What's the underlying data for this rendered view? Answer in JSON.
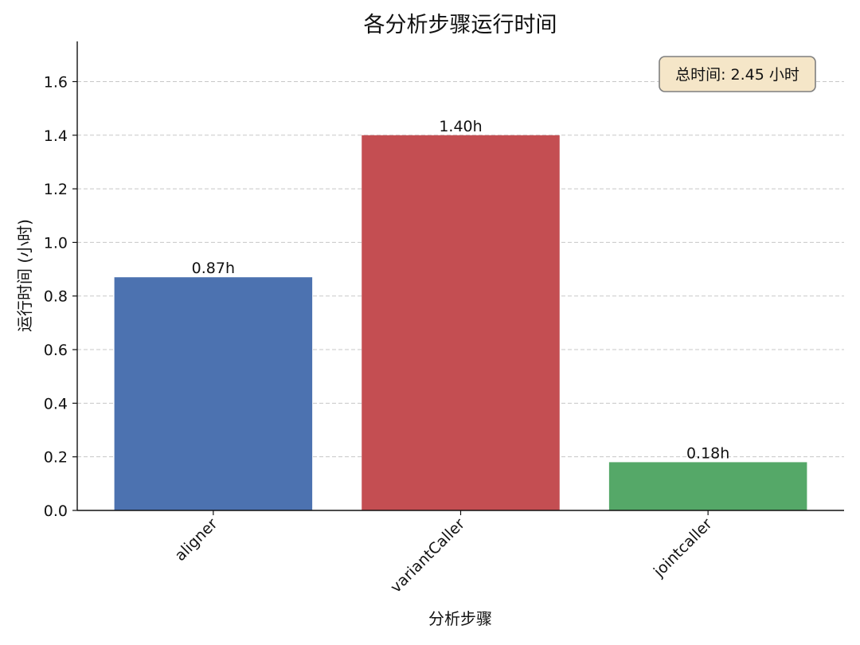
{
  "chart_data": {
    "type": "bar",
    "title": "各分析步骤运行时间",
    "xlabel": "分析步骤",
    "ylabel": "运行时间 (小时)",
    "categories": [
      "aligner",
      "variantCaller",
      "jointcaller"
    ],
    "values": [
      0.87,
      1.4,
      0.18
    ],
    "bar_labels": [
      "0.87h",
      "1.40h",
      "0.18h"
    ],
    "colors": [
      "#4c72b0",
      "#c44e52",
      "#55a868"
    ],
    "ylim": [
      0,
      1.75
    ],
    "yticks": [
      0.0,
      0.2,
      0.4,
      0.6,
      0.8,
      1.0,
      1.2,
      1.4,
      1.6
    ],
    "ytick_labels": [
      "0.0",
      "0.2",
      "0.4",
      "0.6",
      "0.8",
      "1.0",
      "1.2",
      "1.4",
      "1.6"
    ],
    "grid": "y-dashed",
    "annotation": {
      "text": "总时间: 2.45 小时",
      "placement": "top-right",
      "background": "#f5e6c8",
      "border": "#7f7f7f"
    }
  }
}
